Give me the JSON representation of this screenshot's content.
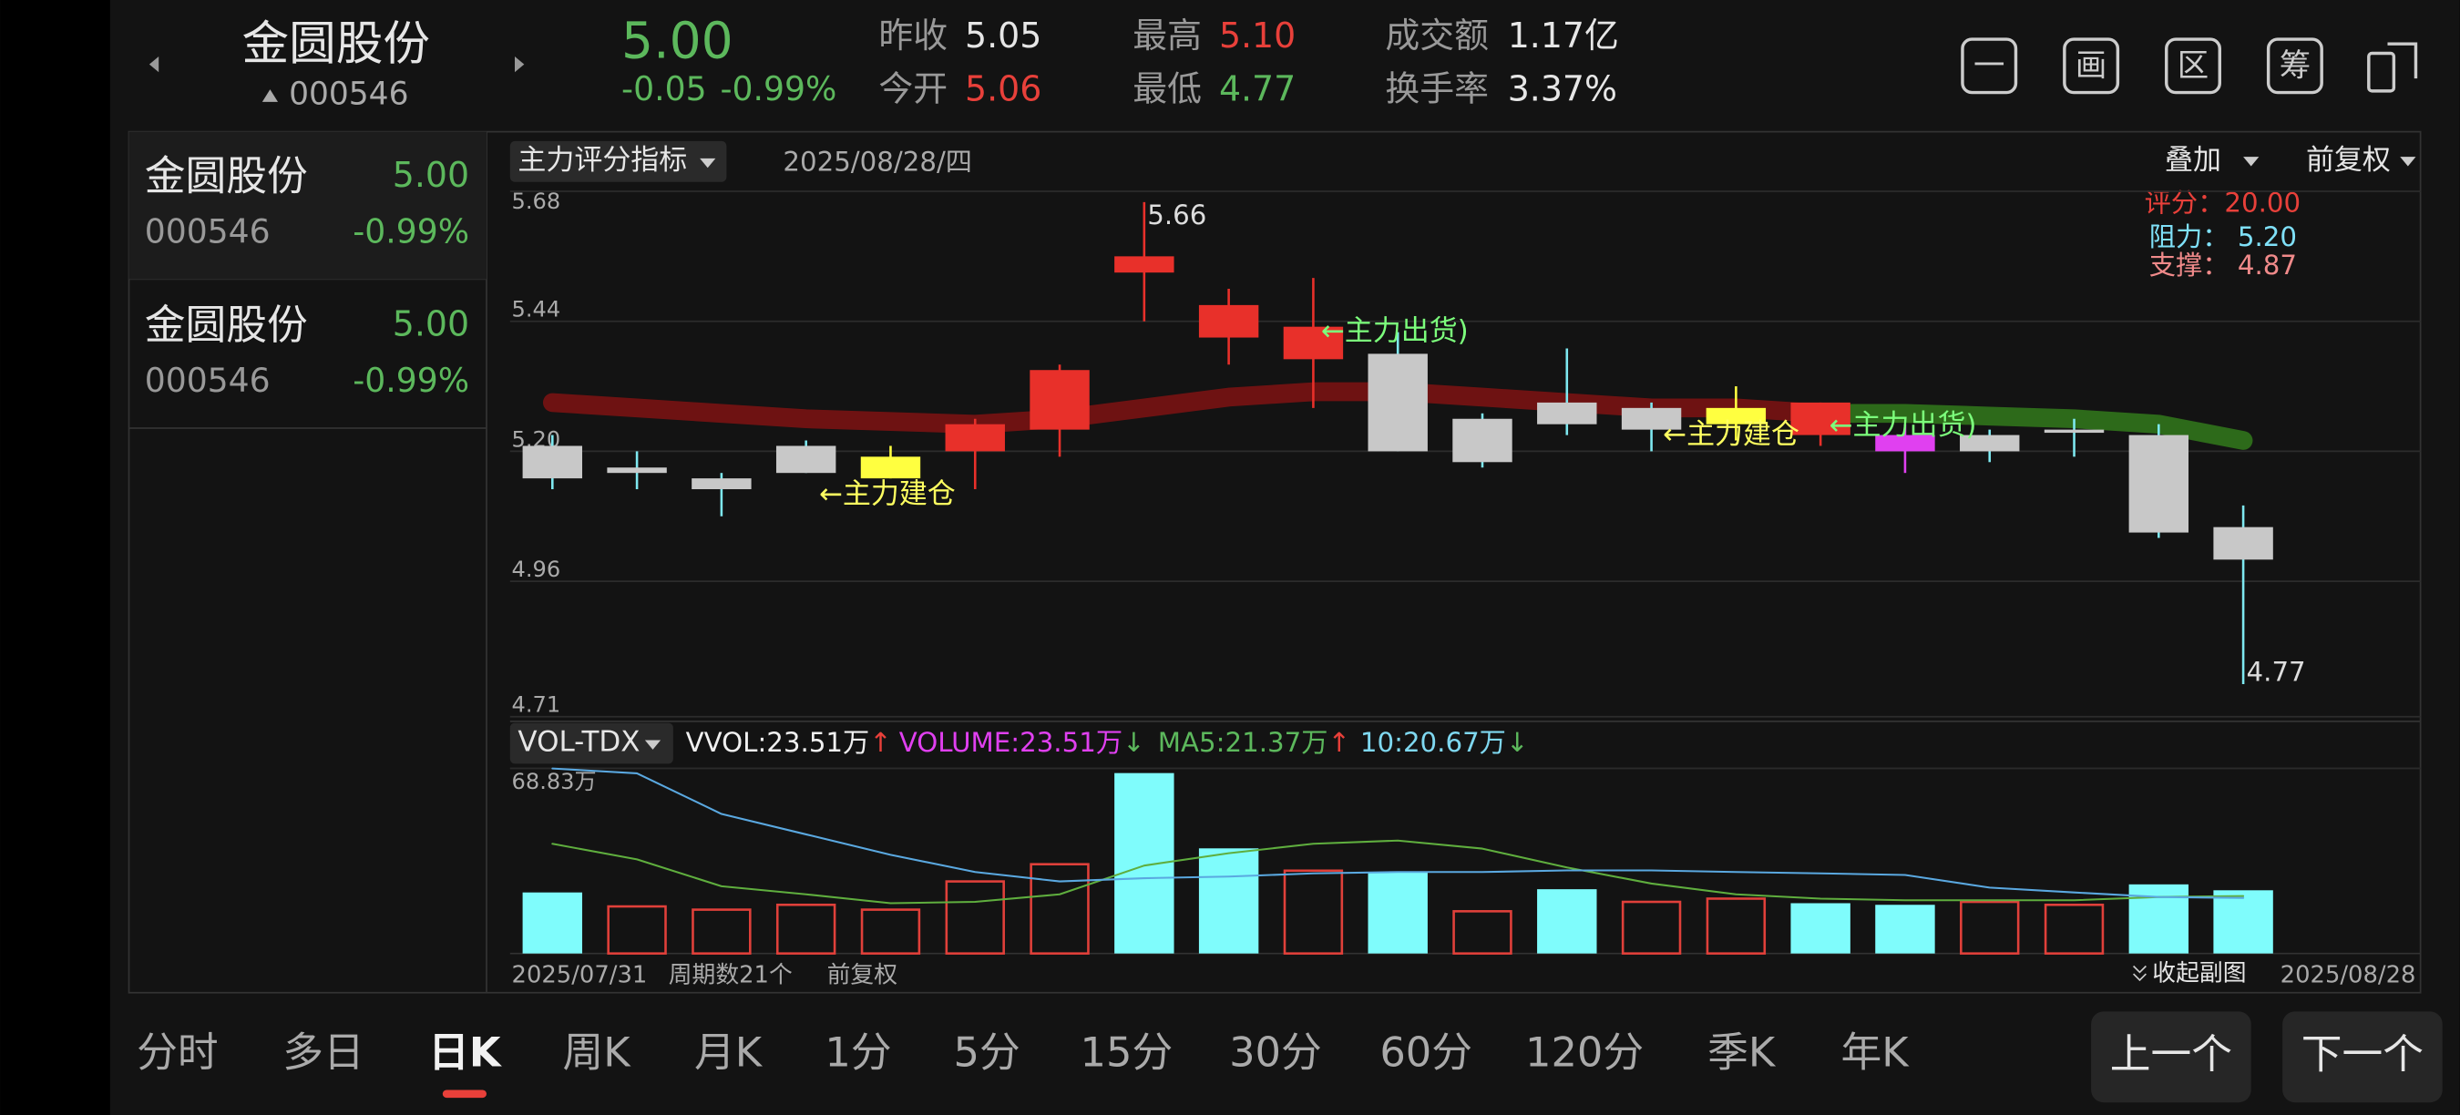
{
  "header": {
    "name": "金圆股份",
    "code": "000546",
    "price": "5.00",
    "change": "-0.05",
    "change_pct": "-0.99%",
    "stats": [
      {
        "label": "昨收",
        "value": "5.05"
      },
      {
        "label": "今开",
        "value": "5.06"
      },
      {
        "label": "最高",
        "value": "5.10"
      },
      {
        "label": "最低",
        "value": "4.77"
      },
      {
        "label": "成交额",
        "value": "1.17亿"
      },
      {
        "label": "换手率",
        "value": "3.37%"
      }
    ],
    "tools": [
      "一",
      "画",
      "区",
      "筹"
    ]
  },
  "watchlist": [
    {
      "name": "金圆股份",
      "price": "5.00",
      "code": "000546",
      "change_pct": "-0.99%"
    },
    {
      "name": "金圆股份",
      "price": "5.00",
      "code": "000546",
      "change_pct": "-0.99%"
    }
  ],
  "toolbar": {
    "indicator": "主力评分指标",
    "date": "2025/08/28/四",
    "overlay": "叠加",
    "adjust": "前复权"
  },
  "indicator_box": {
    "score": "评分：20.00",
    "resistance": "阻力： 5.20",
    "support": "支撑： 4.87"
  },
  "chart_data": [
    {
      "type": "candlestick",
      "categories": [
        "2025/07/31",
        null,
        null,
        null,
        null,
        null,
        null,
        null,
        null,
        null,
        null,
        null,
        null,
        null,
        null,
        null,
        null,
        null,
        null,
        null,
        "2025/08/28"
      ],
      "open": [
        5.21,
        5.17,
        5.15,
        5.21,
        5.19,
        5.2,
        5.24,
        5.53,
        5.41,
        5.37,
        5.38,
        5.26,
        5.29,
        5.28,
        5.28,
        5.23,
        5.23,
        5.23,
        5.24,
        5.23,
        5.06
      ],
      "high": [
        5.23,
        5.2,
        5.16,
        5.22,
        5.21,
        5.26,
        5.36,
        5.66,
        5.5,
        5.52,
        5.42,
        5.27,
        5.39,
        5.29,
        5.32,
        5.29,
        5.25,
        5.24,
        5.26,
        5.25,
        5.1
      ],
      "low": [
        5.13,
        5.13,
        5.08,
        5.16,
        5.15,
        5.13,
        5.19,
        5.44,
        5.36,
        5.28,
        5.2,
        5.17,
        5.23,
        5.2,
        5.22,
        5.21,
        5.16,
        5.18,
        5.19,
        5.04,
        4.77
      ],
      "close": [
        5.15,
        5.16,
        5.13,
        5.16,
        5.15,
        5.25,
        5.35,
        5.56,
        5.47,
        5.43,
        5.2,
        5.18,
        5.25,
        5.24,
        5.25,
        5.29,
        5.2,
        5.2,
        5.235,
        5.05,
        5.0
      ],
      "colors": [
        "#c8c8c8",
        "#c8c8c8",
        "#c8c8c8",
        "#c8c8c8",
        "#ffff40",
        "#e8302a",
        "#e8302a",
        "#e8302a",
        "#e8302a",
        "#e8302a",
        "#c8c8c8",
        "#c8c8c8",
        "#c8c8c8",
        "#c8c8c8",
        "#ffff40",
        "#e8302a",
        "#e040f0",
        "#c8c8c8",
        "#c8c8c8",
        "#c8c8c8",
        "#c8c8c8"
      ],
      "series": [
        {
          "color": "#6e1212",
          "values": [
            5.29,
            5.28,
            5.27,
            5.26,
            5.255,
            5.25,
            5.26,
            5.28,
            5.3,
            5.31,
            5.31,
            5.3,
            5.29,
            5.28,
            5.28,
            5.27,
            null,
            null,
            null,
            null,
            null
          ]
        },
        {
          "color": "#2d6a1a",
          "values": [
            null,
            null,
            null,
            null,
            null,
            null,
            null,
            null,
            null,
            null,
            null,
            null,
            null,
            null,
            null,
            5.27,
            5.27,
            5.265,
            5.26,
            5.25,
            5.22
          ]
        }
      ],
      "extreme_labels": [
        "5.66",
        "4.77"
      ],
      "annotations": [
        "←主力建仓",
        "←主力出货)",
        "←主力建仓",
        "←主力出货)"
      ],
      "ylim": [
        4.71,
        5.68
      ],
      "yticks": [
        4.71,
        4.96,
        {
          "value": 5.2,
          "label": "5.20"
        },
        5.44,
        5.68
      ],
      "grid": true
    },
    {
      "type": "bar",
      "title": "VOL-TDX",
      "legend": [
        {
          "text": "VVOL:23.51万",
          "arrow": "↑"
        },
        {
          "text": "VOLUME:23.51万",
          "arrow": "↓"
        },
        {
          "text": "MA5:21.37万",
          "arrow": "↑"
        },
        {
          "text": "10:20.67万",
          "arrow": "↓"
        }
      ],
      "values": [
        22.7,
        17.5,
        16.3,
        18.1,
        16.3,
        26.8,
        33.2,
        67.1,
        39.1,
        30.8,
        30.3,
        15.7,
        23.9,
        19.2,
        20.4,
        18.7,
        18.1,
        19.2,
        18.1,
        25.7,
        23.51
      ],
      "hollow": [
        false,
        true,
        true,
        true,
        true,
        true,
        true,
        false,
        false,
        true,
        false,
        true,
        false,
        true,
        true,
        false,
        false,
        true,
        true,
        false,
        false
      ],
      "colors": [
        "#7ffcfc",
        "#e0403a",
        "#e0403a",
        "#e0403a",
        "#e0403a",
        "#e0403a",
        "#e0403a",
        "#7ffcfc",
        "#7ffcfc",
        "#e0403a",
        "#7ffcfc",
        "#e0403a",
        "#7ffcfc",
        "#e0403a",
        "#e0403a",
        "#7ffcfc",
        "#7ffcfc",
        "#e0403a",
        "#e0403a",
        "#7ffcfc",
        "#7ffcfc"
      ],
      "series": [
        {
          "name": "MA5",
          "color": "#5fae3e",
          "values": [
            40.8,
            35,
            25,
            22,
            18.7,
            19.2,
            22,
            32.7,
            37.3,
            40.8,
            42,
            39,
            32,
            26,
            22,
            20.4,
            19.8,
            19.8,
            19.8,
            21,
            21.37
          ]
        },
        {
          "name": "10",
          "color": "#5aa8e0",
          "values": [
            68.8,
            67,
            51.9,
            44.3,
            36.7,
            30.3,
            26.8,
            28,
            28.6,
            29.8,
            30.3,
            30.3,
            30.9,
            30.9,
            30.3,
            29.8,
            29.2,
            24.5,
            22.7,
            21,
            20.67
          ]
        }
      ],
      "ylim": [
        0,
        68.83
      ],
      "yticks": [
        {
          "value": 68.83,
          "label": "68.83万"
        }
      ]
    }
  ],
  "footer": {
    "count": "周期数21个",
    "adjust": "前复权",
    "collapse": "收起副图"
  },
  "tabs": [
    "分时",
    "多日",
    "日K",
    "周K",
    "月K",
    "1分",
    "5分",
    "15分",
    "30分",
    "60分",
    "120分",
    "季K",
    "年K"
  ],
  "buttons": [
    "上一个",
    "下一个"
  ]
}
